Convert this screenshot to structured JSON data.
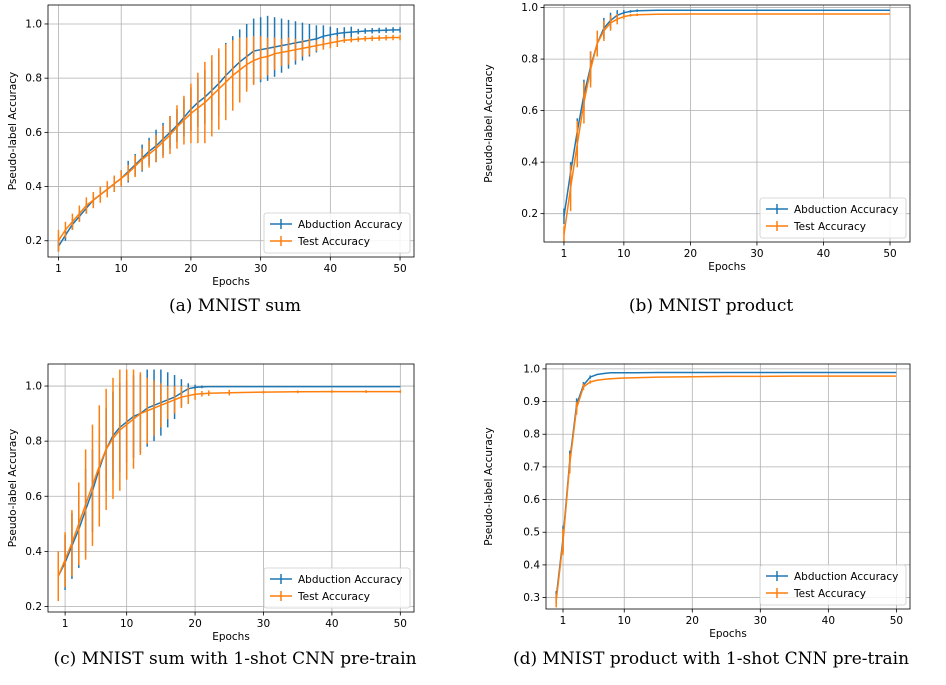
{
  "colors": {
    "abduction": "#1f77b4",
    "test": "#ff7f0e",
    "grid": "#b0b0b0"
  },
  "chart_data": [
    {
      "type": "line",
      "caption": "(a) MNIST sum",
      "xlabel": "Epochs",
      "ylabel": "Pseudo-label Accuracy",
      "xlim": [
        -0.5,
        52
      ],
      "ylim": [
        0.14,
        1.07
      ],
      "xticks": [
        1,
        10,
        20,
        30,
        40,
        50
      ],
      "yticks": [
        0.2,
        0.4,
        0.6,
        0.8,
        1.0
      ],
      "ytick_labels": [
        "0.2",
        "0.4",
        "0.6",
        "0.8",
        "1.0"
      ],
      "grid": true,
      "legend": "lower-right",
      "series": [
        {
          "name": "Abduction Accuracy",
          "x": [
            1,
            2,
            3,
            4,
            5,
            6,
            7,
            8,
            9,
            10,
            11,
            12,
            13,
            14,
            15,
            16,
            17,
            18,
            19,
            20,
            21,
            22,
            23,
            24,
            25,
            26,
            27,
            28,
            29,
            30,
            31,
            32,
            33,
            34,
            35,
            36,
            37,
            38,
            39,
            40,
            41,
            42,
            43,
            44,
            45,
            46,
            47,
            48,
            49,
            50
          ],
          "y": [
            0.18,
            0.22,
            0.26,
            0.29,
            0.32,
            0.35,
            0.37,
            0.39,
            0.41,
            0.43,
            0.455,
            0.48,
            0.505,
            0.53,
            0.55,
            0.575,
            0.6,
            0.625,
            0.655,
            0.685,
            0.71,
            0.73,
            0.755,
            0.78,
            0.81,
            0.835,
            0.86,
            0.88,
            0.9,
            0.905,
            0.91,
            0.915,
            0.92,
            0.925,
            0.93,
            0.935,
            0.94,
            0.945,
            0.955,
            0.96,
            0.965,
            0.968,
            0.97,
            0.972,
            0.974,
            0.975,
            0.976,
            0.977,
            0.978,
            0.978
          ],
          "err": [
            0.02,
            0.02,
            0.02,
            0.02,
            0.02,
            0.02,
            0.02,
            0.02,
            0.03,
            0.03,
            0.04,
            0.04,
            0.05,
            0.05,
            0.06,
            0.06,
            0.06,
            0.06,
            0.07,
            0.08,
            0.09,
            0.1,
            0.11,
            0.12,
            0.12,
            0.12,
            0.12,
            0.12,
            0.12,
            0.12,
            0.12,
            0.11,
            0.1,
            0.09,
            0.08,
            0.07,
            0.06,
            0.05,
            0.04,
            0.03,
            0.02,
            0.02,
            0.02,
            0.01,
            0.01,
            0.01,
            0.01,
            0.01,
            0.01,
            0.01
          ]
        },
        {
          "name": "Test Accuracy",
          "x": [
            1,
            2,
            3,
            4,
            5,
            6,
            7,
            8,
            9,
            10,
            11,
            12,
            13,
            14,
            15,
            16,
            17,
            18,
            19,
            20,
            21,
            22,
            23,
            24,
            25,
            26,
            27,
            28,
            29,
            30,
            31,
            32,
            33,
            34,
            35,
            36,
            37,
            38,
            39,
            40,
            41,
            42,
            43,
            44,
            45,
            46,
            47,
            48,
            49,
            50
          ],
          "y": [
            0.2,
            0.24,
            0.27,
            0.3,
            0.33,
            0.35,
            0.37,
            0.39,
            0.41,
            0.43,
            0.45,
            0.475,
            0.5,
            0.52,
            0.54,
            0.565,
            0.59,
            0.62,
            0.645,
            0.67,
            0.69,
            0.71,
            0.735,
            0.76,
            0.785,
            0.81,
            0.83,
            0.85,
            0.865,
            0.875,
            0.88,
            0.89,
            0.895,
            0.9,
            0.905,
            0.91,
            0.915,
            0.92,
            0.925,
            0.93,
            0.935,
            0.94,
            0.942,
            0.944,
            0.946,
            0.947,
            0.948,
            0.949,
            0.95,
            0.95
          ],
          "err": [
            0.04,
            0.03,
            0.03,
            0.03,
            0.03,
            0.03,
            0.03,
            0.03,
            0.03,
            0.03,
            0.03,
            0.04,
            0.04,
            0.05,
            0.05,
            0.06,
            0.07,
            0.08,
            0.09,
            0.11,
            0.13,
            0.15,
            0.15,
            0.15,
            0.14,
            0.13,
            0.12,
            0.1,
            0.09,
            0.08,
            0.07,
            0.06,
            0.05,
            0.05,
            0.04,
            0.03,
            0.03,
            0.02,
            0.02,
            0.02,
            0.02,
            0.01,
            0.01,
            0.01,
            0.01,
            0.01,
            0.01,
            0.01,
            0.01,
            0.01
          ]
        }
      ]
    },
    {
      "type": "line",
      "caption": "(b) MNIST product",
      "xlabel": "Epochs",
      "ylabel": "Pseudo-label Accuracy",
      "xlim": [
        -2,
        53
      ],
      "ylim": [
        0.09,
        1.01
      ],
      "xticks": [
        1,
        10,
        20,
        30,
        40,
        50
      ],
      "yticks": [
        0.2,
        0.4,
        0.6,
        0.8,
        1.0
      ],
      "ytick_labels": [
        "0.2",
        "0.4",
        "0.6",
        "0.8",
        "1.0"
      ],
      "grid": true,
      "legend": "lower-right",
      "series": [
        {
          "name": "Abduction Accuracy",
          "x": [
            1,
            2,
            3,
            4,
            5,
            6,
            7,
            8,
            9,
            10,
            11,
            12,
            15,
            20,
            25,
            30,
            35,
            40,
            45,
            50
          ],
          "y": [
            0.19,
            0.36,
            0.52,
            0.66,
            0.77,
            0.86,
            0.92,
            0.95,
            0.97,
            0.98,
            0.985,
            0.988,
            0.99,
            0.99,
            0.99,
            0.99,
            0.99,
            0.99,
            0.99,
            0.99
          ],
          "err": [
            0.03,
            0.04,
            0.05,
            0.06,
            0.06,
            0.05,
            0.04,
            0.03,
            0.02,
            0.01,
            0.005,
            0.005,
            0.003,
            0.003,
            0.003,
            0.003,
            0.003,
            0.003,
            0.003,
            0.003
          ]
        },
        {
          "name": "Test Accuracy",
          "x": [
            1,
            2,
            3,
            4,
            5,
            6,
            7,
            8,
            9,
            10,
            11,
            12,
            15,
            20,
            25,
            30,
            35,
            40,
            45,
            50
          ],
          "y": [
            0.12,
            0.3,
            0.47,
            0.63,
            0.76,
            0.86,
            0.91,
            0.94,
            0.955,
            0.965,
            0.97,
            0.972,
            0.974,
            0.975,
            0.975,
            0.975,
            0.975,
            0.975,
            0.975,
            0.975
          ],
          "err": [
            0.03,
            0.09,
            0.09,
            0.08,
            0.07,
            0.05,
            0.04,
            0.03,
            0.02,
            0.01,
            0.005,
            0.005,
            0.003,
            0.003,
            0.003,
            0.003,
            0.003,
            0.003,
            0.003,
            0.003
          ]
        }
      ]
    },
    {
      "type": "line",
      "caption": "(c) MNIST sum with 1-shot CNN pre-train",
      "xlabel": "Epochs",
      "ylabel": "Pseudo-label Accuracy",
      "xlim": [
        -1.5,
        52
      ],
      "ylim": [
        0.18,
        1.08
      ],
      "xticks": [
        1,
        10,
        20,
        30,
        40,
        50
      ],
      "yticks": [
        0.2,
        0.4,
        0.6,
        0.8,
        1.0
      ],
      "ytick_labels": [
        "0.2",
        "0.4",
        "0.6",
        "0.8",
        "1.0"
      ],
      "grid": true,
      "legend": "lower-right",
      "series": [
        {
          "name": "Abduction Accuracy",
          "x": [
            0,
            1,
            2,
            3,
            4,
            5,
            6,
            7,
            8,
            9,
            10,
            11,
            12,
            13,
            14,
            15,
            16,
            17,
            18,
            19,
            20,
            21,
            22,
            25,
            30,
            35,
            40,
            45,
            50
          ],
          "y": [
            0.31,
            0.36,
            0.42,
            0.48,
            0.55,
            0.62,
            0.7,
            0.77,
            0.82,
            0.85,
            0.87,
            0.89,
            0.9,
            0.92,
            0.93,
            0.94,
            0.95,
            0.96,
            0.975,
            0.99,
            0.995,
            0.997,
            0.998,
            0.998,
            0.998,
            0.998,
            0.998,
            0.998,
            0.998
          ],
          "err": [
            0.07,
            0.1,
            0.12,
            0.14,
            0.15,
            0.15,
            0.15,
            0.15,
            0.16,
            0.16,
            0.15,
            0.15,
            0.14,
            0.14,
            0.13,
            0.12,
            0.1,
            0.08,
            0.05,
            0.02,
            0.01,
            0.005,
            0.003,
            0.003,
            0.003,
            0.003,
            0.003,
            0.003,
            0.003
          ]
        },
        {
          "name": "Test Accuracy",
          "x": [
            0,
            1,
            2,
            3,
            4,
            5,
            6,
            7,
            8,
            9,
            10,
            11,
            12,
            13,
            14,
            15,
            16,
            17,
            18,
            19,
            20,
            21,
            22,
            25,
            30,
            35,
            40,
            45,
            50
          ],
          "y": [
            0.31,
            0.37,
            0.43,
            0.5,
            0.57,
            0.64,
            0.71,
            0.77,
            0.81,
            0.84,
            0.86,
            0.88,
            0.9,
            0.91,
            0.92,
            0.93,
            0.94,
            0.95,
            0.96,
            0.965,
            0.97,
            0.972,
            0.974,
            0.976,
            0.978,
            0.979,
            0.98,
            0.98,
            0.98
          ],
          "err": [
            0.09,
            0.1,
            0.12,
            0.15,
            0.2,
            0.22,
            0.22,
            0.22,
            0.22,
            0.22,
            0.2,
            0.18,
            0.15,
            0.12,
            0.1,
            0.08,
            0.06,
            0.05,
            0.04,
            0.03,
            0.02,
            0.01,
            0.01,
            0.01,
            0.005,
            0.005,
            0.005,
            0.005,
            0.005
          ]
        }
      ]
    },
    {
      "type": "line",
      "caption": "(d) MNIST product with 1-shot CNN pre-train",
      "xlabel": "Epochs",
      "ylabel": "Pseudo-label Accuracy",
      "xlim": [
        -1.5,
        52
      ],
      "ylim": [
        0.265,
        1.015
      ],
      "xticks": [
        1,
        10,
        20,
        30,
        40,
        50
      ],
      "yticks": [
        0.3,
        0.4,
        0.5,
        0.6,
        0.7,
        0.8,
        0.9,
        1.0
      ],
      "ytick_labels": [
        "0.3",
        "0.4",
        "0.5",
        "0.6",
        "0.7",
        "0.8",
        "0.9",
        "1.0"
      ],
      "grid": true,
      "legend": "lower-right",
      "series": [
        {
          "name": "Abduction Accuracy",
          "x": [
            0,
            1,
            2,
            3,
            4,
            5,
            6,
            7,
            8,
            10,
            15,
            20,
            25,
            30,
            35,
            40,
            45,
            50
          ],
          "y": [
            0.3,
            0.48,
            0.72,
            0.89,
            0.95,
            0.975,
            0.983,
            0.986,
            0.988,
            0.988,
            0.989,
            0.989,
            0.989,
            0.989,
            0.989,
            0.989,
            0.989,
            0.989
          ],
          "err": [
            0.02,
            0.04,
            0.03,
            0.02,
            0.01,
            0.005,
            0.003,
            0.003,
            0.003,
            0.003,
            0.003,
            0.003,
            0.003,
            0.003,
            0.003,
            0.003,
            0.003,
            0.003
          ]
        },
        {
          "name": "Test Accuracy",
          "x": [
            0,
            1,
            2,
            3,
            4,
            5,
            6,
            7,
            8,
            10,
            15,
            20,
            25,
            30,
            35,
            40,
            45,
            50
          ],
          "y": [
            0.29,
            0.47,
            0.71,
            0.88,
            0.945,
            0.96,
            0.965,
            0.968,
            0.97,
            0.972,
            0.975,
            0.976,
            0.977,
            0.977,
            0.978,
            0.978,
            0.978,
            0.978
          ],
          "err": [
            0.02,
            0.04,
            0.03,
            0.02,
            0.01,
            0.005,
            0.003,
            0.003,
            0.003,
            0.003,
            0.003,
            0.003,
            0.003,
            0.003,
            0.003,
            0.003,
            0.003,
            0.003
          ]
        }
      ]
    }
  ]
}
